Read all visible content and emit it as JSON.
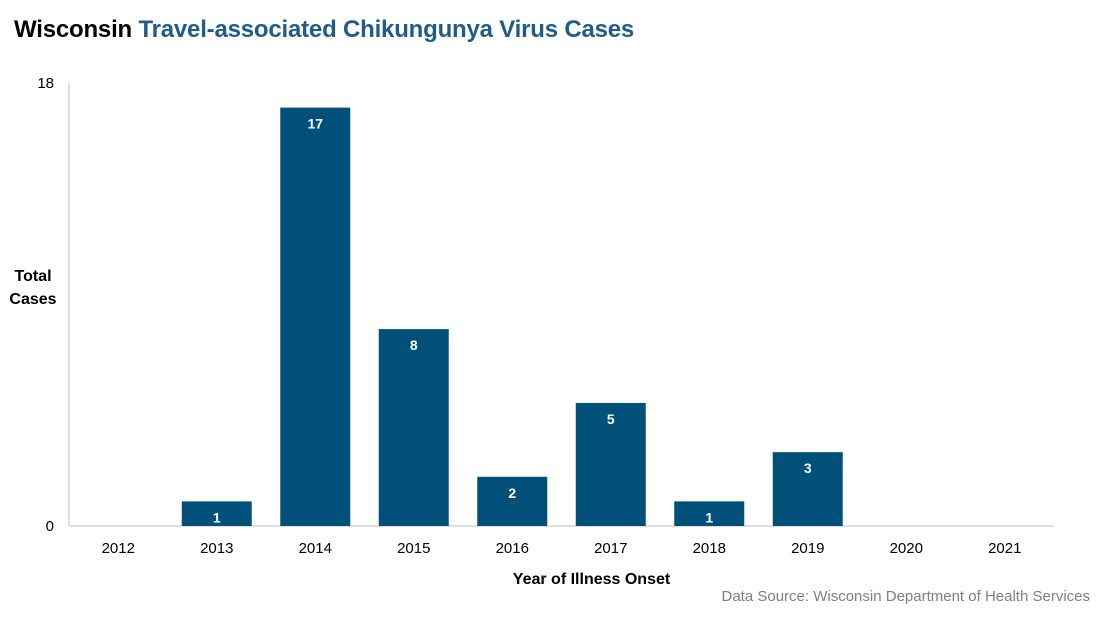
{
  "title": {
    "prefix": "Wisconsin",
    "main": "Travel-associated Chikungunya Virus Cases"
  },
  "source": "Data Source: Wisconsin Department of Health Services",
  "colors": {
    "bar": "#00507a",
    "title_prefix": "#000000",
    "title_main": "#1f5c8b",
    "axis": "#bfbfbf",
    "label": "#000000",
    "data_label": "#ffffff",
    "source": "#7f7f7f"
  },
  "chart_data": {
    "type": "bar",
    "categories": [
      "2012",
      "2013",
      "2014",
      "2015",
      "2016",
      "2017",
      "2018",
      "2019",
      "2020",
      "2021"
    ],
    "values": [
      0,
      1,
      17,
      8,
      2,
      5,
      1,
      3,
      0,
      0
    ],
    "data_labels": [
      "",
      "1",
      "17",
      "8",
      "2",
      "5",
      "1",
      "3",
      "",
      ""
    ],
    "ylabel_lines": [
      "Total",
      "Cases"
    ],
    "xlabel": "Year of Illness Onset",
    "yticks": [
      "0",
      "18"
    ],
    "ylim": [
      0,
      18
    ],
    "grid": false,
    "legend": "none"
  }
}
